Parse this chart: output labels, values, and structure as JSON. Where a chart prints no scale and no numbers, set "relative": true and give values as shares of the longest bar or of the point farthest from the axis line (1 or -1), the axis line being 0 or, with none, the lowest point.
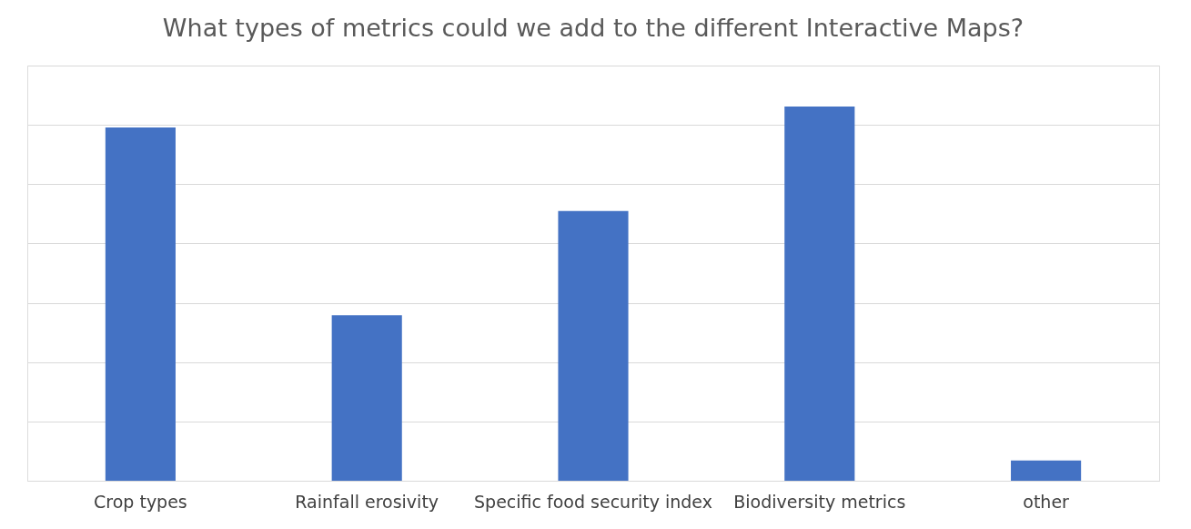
{
  "chart_data": {
    "type": "bar",
    "title": "What types of metrics could we add to the different Interactive Maps?",
    "categories": [
      "Crop types",
      "Rainfall erosivity",
      "Specific food security index",
      "Biodiversity metrics",
      "other"
    ],
    "values": [
      0.944,
      0.442,
      0.721,
      1,
      0.054
    ],
    "color": "#4472c4",
    "relative": true,
    "grid": "y"
  }
}
